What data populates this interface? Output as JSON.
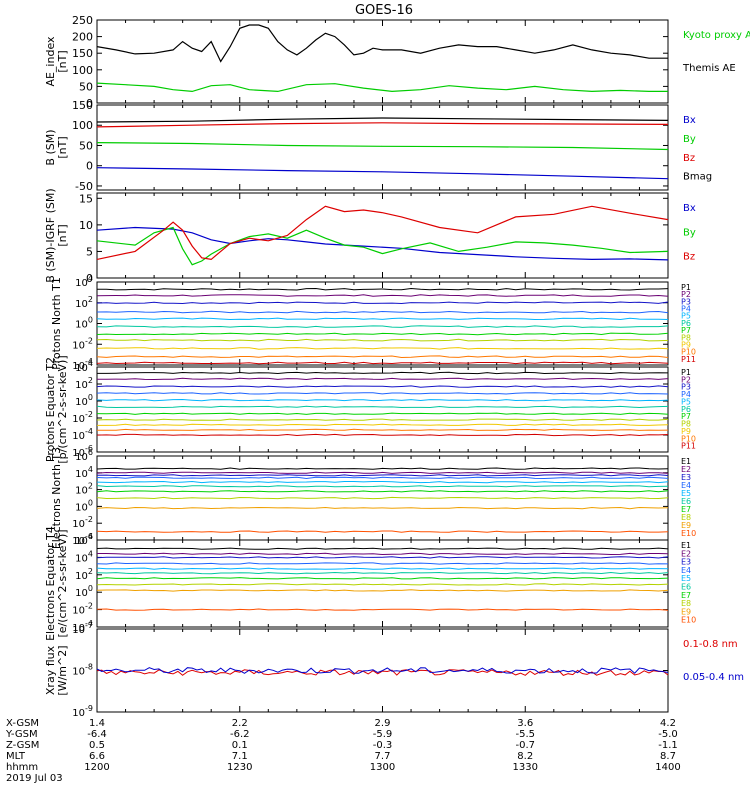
{
  "title": "GOES-16",
  "colors": {
    "black": "#000000",
    "red": "#dd0000",
    "green": "#00cc00",
    "blue": "#0000cc",
    "P": [
      "#000000",
      "#6a0073",
      "#1414c8",
      "#1e64ff",
      "#00b4ff",
      "#00c8a0",
      "#00d200",
      "#b4d200",
      "#f0c800",
      "#ff7800",
      "#d20000"
    ],
    "E": [
      "#000000",
      "#6a0073",
      "#1414c8",
      "#1e64ff",
      "#00b4ff",
      "#00c8a0",
      "#00d200",
      "#b4d200",
      "#f0a000",
      "#ff5000",
      "#d20000"
    ]
  },
  "chart_data": [
    {
      "type": "line",
      "ylabel": "AE_index [nT]",
      "ylim": [
        0,
        250
      ],
      "yticks": [
        "0",
        "50",
        "100",
        "150",
        "200",
        "250"
      ],
      "legend": [
        {
          "label": "Kyoto proxy AE",
          "color": "#00cc00"
        },
        {
          "label": "Themis AE",
          "color": "#000000"
        }
      ],
      "series": [
        {
          "name": "Themis AE",
          "color": "#000000",
          "x": [
            0,
            4,
            8,
            12,
            16,
            18,
            20,
            22,
            24,
            26,
            28,
            30,
            32,
            34,
            36,
            38,
            40,
            42,
            44,
            46,
            48,
            50,
            52,
            54,
            56,
            58,
            60,
            64,
            68,
            72,
            76,
            80,
            84,
            88,
            92,
            96,
            100,
            104,
            108,
            112,
            116,
            120
          ],
          "y": [
            170,
            160,
            148,
            150,
            160,
            185,
            165,
            155,
            185,
            125,
            170,
            225,
            235,
            235,
            225,
            185,
            160,
            145,
            165,
            190,
            210,
            200,
            175,
            145,
            150,
            165,
            160,
            160,
            150,
            165,
            175,
            170,
            170,
            160,
            150,
            160,
            175,
            160,
            150,
            145,
            135,
            135
          ]
        },
        {
          "name": "Kyoto proxy AE",
          "color": "#00cc00",
          "x": [
            0,
            6,
            12,
            16,
            20,
            24,
            28,
            32,
            38,
            44,
            50,
            56,
            62,
            68,
            74,
            80,
            86,
            92,
            98,
            104,
            110,
            116,
            120
          ],
          "y": [
            60,
            55,
            50,
            40,
            35,
            52,
            55,
            40,
            35,
            55,
            58,
            45,
            35,
            40,
            52,
            45,
            40,
            50,
            40,
            35,
            38,
            35,
            35
          ]
        }
      ]
    },
    {
      "type": "line",
      "ylabel": "B (SM) [nT]",
      "ylim": [
        -60,
        150
      ],
      "yticks": [
        "-50",
        "0",
        "50",
        "100",
        "150"
      ],
      "legend": [
        {
          "label": "Bx",
          "color": "#0000cc"
        },
        {
          "label": "By",
          "color": "#00cc00"
        },
        {
          "label": "Bz",
          "color": "#dd0000"
        },
        {
          "label": "Bmag",
          "color": "#000000"
        }
      ],
      "series": [
        {
          "name": "Bmag",
          "color": "#000000",
          "x": [
            0,
            20,
            40,
            60,
            80,
            100,
            120
          ],
          "y": [
            108,
            110,
            115,
            118,
            116,
            114,
            112
          ]
        },
        {
          "name": "Bz",
          "color": "#dd0000",
          "x": [
            0,
            20,
            40,
            60,
            80,
            100,
            120
          ],
          "y": [
            96,
            100,
            104,
            106,
            104,
            103,
            102
          ]
        },
        {
          "name": "By",
          "color": "#00cc00",
          "x": [
            0,
            20,
            40,
            60,
            80,
            100,
            120
          ],
          "y": [
            57,
            55,
            50,
            48,
            47,
            45,
            40
          ]
        },
        {
          "name": "Bx",
          "color": "#0000cc",
          "x": [
            0,
            20,
            40,
            60,
            80,
            100,
            120
          ],
          "y": [
            -5,
            -8,
            -12,
            -15,
            -20,
            -26,
            -32
          ]
        }
      ]
    },
    {
      "type": "line",
      "ylabel": "B (SM)-IGRF (SM) [nT]",
      "ylim": [
        0,
        16
      ],
      "yticks": [
        "0",
        "5",
        "10",
        "15"
      ],
      "legend": [
        {
          "label": "Bx",
          "color": "#0000cc"
        },
        {
          "label": "By",
          "color": "#00cc00"
        },
        {
          "label": "Bz",
          "color": "#dd0000"
        }
      ],
      "series": [
        {
          "name": "Bx",
          "color": "#0000cc",
          "x": [
            0,
            8,
            16,
            20,
            24,
            28,
            32,
            36,
            40,
            44,
            48,
            56,
            64,
            72,
            80,
            88,
            96,
            104,
            112,
            120
          ],
          "y": [
            9,
            9.5,
            9.2,
            8.5,
            7.2,
            6.5,
            7.0,
            7.4,
            7.2,
            6.8,
            6.4,
            6.0,
            5.6,
            4.8,
            4.4,
            4.0,
            3.7,
            3.5,
            3.6,
            3.4
          ]
        },
        {
          "name": "By",
          "color": "#00cc00",
          "x": [
            0,
            8,
            12,
            16,
            18,
            20,
            22,
            24,
            28,
            32,
            36,
            40,
            44,
            48,
            52,
            56,
            60,
            64,
            70,
            76,
            82,
            88,
            94,
            100,
            106,
            112,
            120
          ],
          "y": [
            7,
            6.2,
            8.5,
            9.5,
            5.5,
            2.5,
            3.2,
            4.5,
            6.5,
            7.8,
            8.3,
            7.5,
            9.0,
            7.5,
            6.2,
            5.8,
            4.6,
            5.5,
            6.6,
            5.0,
            5.8,
            6.8,
            6.6,
            6.2,
            5.6,
            4.8,
            5.0
          ]
        },
        {
          "name": "Bz",
          "color": "#dd0000",
          "x": [
            0,
            8,
            14,
            16,
            18,
            20,
            22,
            24,
            26,
            28,
            32,
            36,
            40,
            44,
            48,
            52,
            56,
            60,
            64,
            72,
            80,
            88,
            96,
            104,
            112,
            120
          ],
          "y": [
            3.5,
            5,
            9,
            10.5,
            9,
            6,
            3.8,
            3.5,
            5,
            6.5,
            7.5,
            7,
            8,
            11,
            13.5,
            12.5,
            12.8,
            12.3,
            11.5,
            9.5,
            8.5,
            11.5,
            12,
            13.5,
            12.2,
            11
          ]
        }
      ]
    },
    {
      "type": "line",
      "ylabel": "Protons North T1",
      "yscale": "log",
      "ylim": [
        0.0001,
        10000
      ],
      "yticks": [
        "10^-4",
        "10^-2",
        "10^0",
        "10^2",
        "10^4"
      ],
      "legend": [
        "P1",
        "P2",
        "P3",
        "P4",
        "P5",
        "P6",
        "P7",
        "P8",
        "P9",
        "P10",
        "P11"
      ],
      "series_log10": [
        3.3,
        2.7,
        2.0,
        1.1,
        0.45,
        -0.3,
        -1.0,
        -1.6,
        -2.4,
        -3.2,
        -3.8
      ],
      "series_style": "flat levels with small fluctuations; P9 and P10 partially missing"
    },
    {
      "type": "line",
      "ylabel": "Protons Equator T2 [p/(cm^2-s-sr-keV)]",
      "yscale": "log",
      "ylim": [
        1e-06,
        10000
      ],
      "yticks": [
        "10^-6",
        "10^-4",
        "10^-2",
        "10^0",
        "10^2",
        "10^4"
      ],
      "legend": [
        "P1",
        "P2",
        "P3",
        "P4",
        "P5",
        "P6",
        "P7",
        "P8",
        "P9",
        "P10",
        "P11"
      ],
      "series_log10": [
        3.3,
        2.6,
        1.7,
        0.9,
        0.1,
        -0.7,
        -1.5,
        -2.2,
        -2.8,
        -3.4,
        -4.0
      ],
      "series_style": "flat levels with small fluctuations; P8 and P9 partially missing"
    },
    {
      "type": "line",
      "ylabel": "Electrons North T3",
      "yscale": "log",
      "ylim": [
        0.0001,
        1000000
      ],
      "yticks": [
        "10^-4",
        "10^-2",
        "10^0",
        "10^2",
        "10^4",
        "10^6"
      ],
      "legend": [
        "E1",
        "E2",
        "E3",
        "E4",
        "E5",
        "E6",
        "E7",
        "E8",
        "E9",
        "E10"
      ],
      "series_log10": [
        4.5,
        4.0,
        3.7,
        3.4,
        2.9,
        2.4,
        1.8,
        1.0,
        -0.2,
        -3.0
      ],
      "series_style": "flat levels; E10 only a short segment"
    },
    {
      "type": "line",
      "ylabel": "Electrons Equator T4 [e/(cm^2-s-sr-keV)]",
      "yscale": "log",
      "ylim": [
        0.0001,
        1000000
      ],
      "yticks": [
        "10^-4",
        "10^-2",
        "10^0",
        "10^2",
        "10^4",
        "10^6"
      ],
      "legend": [
        "E1",
        "E2",
        "E3",
        "E4",
        "E5",
        "E6",
        "E7",
        "E8",
        "E9",
        "E10"
      ],
      "series_log10": [
        5.0,
        4.4,
        4.0,
        3.3,
        2.7,
        2.2,
        1.6,
        0.9,
        0.2,
        -2.0
      ],
      "series_style": "flat levels; E10 only short segments"
    },
    {
      "type": "line",
      "ylabel": "Xray flux [W/m^2]",
      "yscale": "log",
      "ylim": [
        1e-09,
        1e-07
      ],
      "yticks": [
        "10^-9",
        "10^-8",
        "10^-7"
      ],
      "legend": [
        {
          "label": "0.1-0.8 nm",
          "color": "#dd0000"
        },
        {
          "label": "0.05-0.4 nm",
          "color": "#0000cc"
        }
      ],
      "series": [
        {
          "name": "0.1-0.8 nm",
          "color": "#dd0000",
          "log10_level": -8.05
        },
        {
          "name": "0.05-0.4 nm",
          "color": "#0000cc",
          "log10_level": -8.0
        }
      ]
    }
  ],
  "ephemeris": {
    "labels": [
      "X-GSM",
      "Y-GSM",
      "Z-GSM",
      "MLT",
      "hhmm",
      "2019 Jul 03"
    ],
    "columns": [
      {
        "x": "1.4",
        "y": "-6.4",
        "z": "0.5",
        "mlt": "6.6",
        "hhmm": "1200"
      },
      {
        "x": "2.2",
        "y": "-6.2",
        "z": "0.1",
        "mlt": "7.1",
        "hhmm": "1230"
      },
      {
        "x": "2.9",
        "y": "-5.9",
        "z": "-0.3",
        "mlt": "7.7",
        "hhmm": "1300"
      },
      {
        "x": "3.6",
        "y": "-5.5",
        "z": "-0.7",
        "mlt": "8.2",
        "hhmm": "1330"
      },
      {
        "x": "4.2",
        "y": "-5.0",
        "z": "-1.1",
        "mlt": "8.7",
        "hhmm": "1400"
      }
    ]
  }
}
